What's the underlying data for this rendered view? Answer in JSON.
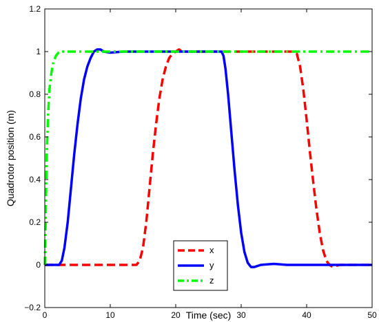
{
  "chart_data": {
    "type": "line",
    "xlabel": "Time (sec)",
    "ylabel": "Quadrotor position (m)",
    "xlim": [
      0,
      50
    ],
    "ylim": [
      -0.2,
      1.2
    ],
    "xticks": [
      0,
      10,
      20,
      30,
      40,
      50
    ],
    "yticks": [
      -0.2,
      0,
      0.2,
      0.4,
      0.6,
      0.8,
      1,
      1.2
    ],
    "xtick_labels": [
      "0",
      "10",
      "20",
      "30",
      "40",
      "50"
    ],
    "ytick_labels": [
      "−0.2",
      "0",
      "0.2",
      "0.4",
      "0.6",
      "0.8",
      "1",
      "1.2"
    ],
    "grid": false,
    "legend_position": "bottom-center",
    "series": [
      {
        "name": "x",
        "color": "#ff0000",
        "style": "dashed",
        "points": [
          [
            0,
            0
          ],
          [
            14,
            0
          ],
          [
            14.5,
            0.02
          ],
          [
            15,
            0.08
          ],
          [
            15.5,
            0.2
          ],
          [
            16,
            0.36
          ],
          [
            16.5,
            0.52
          ],
          [
            17,
            0.66
          ],
          [
            17.5,
            0.78
          ],
          [
            18,
            0.87
          ],
          [
            18.5,
            0.93
          ],
          [
            19,
            0.97
          ],
          [
            19.5,
            0.99
          ],
          [
            20,
            1.0
          ],
          [
            20.5,
            1.01
          ],
          [
            21,
            1.0
          ],
          [
            22,
            1.0
          ],
          [
            30,
            1.0
          ],
          [
            38,
            1.0
          ],
          [
            38.5,
            0.99
          ],
          [
            39,
            0.93
          ],
          [
            39.5,
            0.82
          ],
          [
            40,
            0.68
          ],
          [
            40.5,
            0.53
          ],
          [
            41,
            0.39
          ],
          [
            41.5,
            0.26
          ],
          [
            42,
            0.15
          ],
          [
            42.5,
            0.07
          ],
          [
            43,
            0.02
          ],
          [
            43.5,
            0.0
          ],
          [
            44,
            -0.01
          ],
          [
            45,
            0.0
          ],
          [
            50,
            0.0
          ]
        ]
      },
      {
        "name": "y",
        "color": "#0000ff",
        "style": "solid",
        "points": [
          [
            0,
            0
          ],
          [
            2.2,
            0
          ],
          [
            2.6,
            0.02
          ],
          [
            3,
            0.08
          ],
          [
            3.5,
            0.2
          ],
          [
            4,
            0.36
          ],
          [
            4.5,
            0.52
          ],
          [
            5,
            0.66
          ],
          [
            5.5,
            0.78
          ],
          [
            6,
            0.87
          ],
          [
            6.5,
            0.93
          ],
          [
            7,
            0.97
          ],
          [
            7.5,
            1.0
          ],
          [
            8,
            1.01
          ],
          [
            8.5,
            1.01
          ],
          [
            9,
            1.0
          ],
          [
            10,
            0.995
          ],
          [
            12,
            1.0
          ],
          [
            20,
            1.0
          ],
          [
            27,
            1.0
          ],
          [
            27.3,
            0.98
          ],
          [
            27.6,
            0.92
          ],
          [
            28,
            0.8
          ],
          [
            28.5,
            0.62
          ],
          [
            29,
            0.44
          ],
          [
            29.5,
            0.28
          ],
          [
            30,
            0.15
          ],
          [
            30.5,
            0.06
          ],
          [
            31,
            0.01
          ],
          [
            31.5,
            -0.01
          ],
          [
            32,
            -0.01
          ],
          [
            33,
            0.0
          ],
          [
            35,
            0.005
          ],
          [
            37,
            0.0
          ],
          [
            50,
            0.0
          ]
        ]
      },
      {
        "name": "z",
        "color": "#00ff00",
        "style": "dashdot",
        "points": [
          [
            0,
            0
          ],
          [
            0.1,
            0.15
          ],
          [
            0.2,
            0.35
          ],
          [
            0.3,
            0.52
          ],
          [
            0.5,
            0.7
          ],
          [
            0.7,
            0.82
          ],
          [
            1,
            0.9
          ],
          [
            1.3,
            0.95
          ],
          [
            1.7,
            0.98
          ],
          [
            2.2,
            1.0
          ],
          [
            3,
            1.0
          ],
          [
            50,
            1.0
          ]
        ]
      }
    ]
  }
}
